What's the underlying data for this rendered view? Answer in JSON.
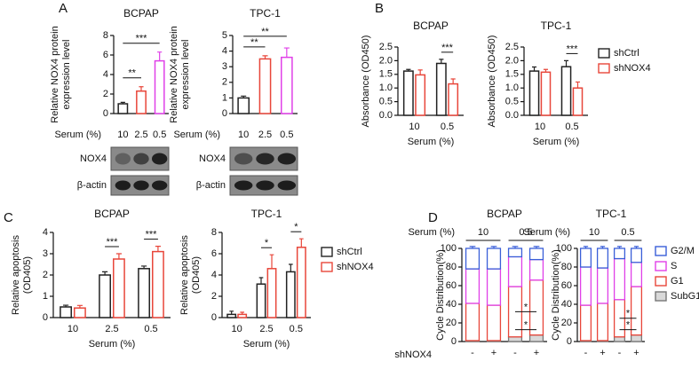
{
  "panel_labels": [
    "A",
    "B",
    "C",
    "D"
  ],
  "chart_data": [
    {
      "type": "bar",
      "title": "BCPAP",
      "y_label": [
        "Relative NOX4 protein",
        "expression level"
      ],
      "x_label": "Serum (%)",
      "categories": [
        "10",
        "2.5",
        "0.5"
      ],
      "values": [
        1.0,
        2.3,
        5.4
      ],
      "errors": [
        0.15,
        0.45,
        0.9
      ],
      "colors": [
        "#222222",
        "#e8463a",
        "#e040e8"
      ],
      "ylim": [
        0,
        8
      ],
      "yticks": [
        0,
        2,
        4,
        6,
        8
      ],
      "annotations": [
        {
          "text": "**",
          "between": [
            "10",
            "2.5"
          ]
        },
        {
          "text": "***",
          "between": [
            "10",
            "0.5"
          ]
        }
      ],
      "blot_labels": [
        "NOX4",
        "β-actin"
      ]
    },
    {
      "type": "bar",
      "title": "TPC-1",
      "y_label": [
        "Relative NOX4 protein",
        "expression level"
      ],
      "x_label": "Serum (%)",
      "categories": [
        "10",
        "2.5",
        "0.5"
      ],
      "values": [
        1.0,
        3.5,
        3.6
      ],
      "errors": [
        0.12,
        0.2,
        0.6
      ],
      "colors": [
        "#222222",
        "#e8463a",
        "#e040e8"
      ],
      "ylim": [
        0,
        5
      ],
      "yticks": [
        0,
        1,
        2,
        3,
        4,
        5
      ],
      "annotations": [
        {
          "text": "**",
          "between": [
            "10",
            "2.5"
          ]
        },
        {
          "text": "**",
          "between": [
            "10",
            "0.5"
          ]
        }
      ],
      "blot_labels": [
        "NOX4",
        "β-actin"
      ]
    },
    {
      "type": "grouped_bar",
      "title": "BCPAP",
      "y_label": [
        "Absorbance (OD450)"
      ],
      "x_label": "Serum (%)",
      "categories": [
        "10",
        "0.5"
      ],
      "series": [
        {
          "name": "shCtrl",
          "color": "#222222",
          "values": [
            1.62,
            1.9
          ],
          "errors": [
            0.06,
            0.15
          ]
        },
        {
          "name": "shNOX4",
          "color": "#e8463a",
          "values": [
            1.48,
            1.15
          ],
          "errors": [
            0.18,
            0.18
          ]
        }
      ],
      "ylim": [
        0,
        2.5
      ],
      "yticks": [
        {
          "value": 0,
          "label": "0.0"
        },
        {
          "value": 0.5,
          "label": "0.5"
        },
        {
          "value": 1,
          "label": "1.0"
        },
        {
          "value": 1.5,
          "label": "1.5"
        },
        {
          "value": 2,
          "label": "2.0"
        },
        {
          "value": 2.5,
          "label": "2.5"
        }
      ],
      "annotations": [
        {
          "text": "***",
          "category": "0.5"
        }
      ]
    },
    {
      "type": "grouped_bar",
      "title": "TPC-1",
      "y_label": [
        "Absorbance (OD450)"
      ],
      "x_label": "Serum (%)",
      "categories": [
        "10",
        "0.5"
      ],
      "series": [
        {
          "name": "shCtrl",
          "color": "#222222",
          "values": [
            1.62,
            1.78
          ],
          "errors": [
            0.15,
            0.22
          ]
        },
        {
          "name": "shNOX4",
          "color": "#e8463a",
          "values": [
            1.58,
            1.0
          ],
          "errors": [
            0.1,
            0.22
          ]
        }
      ],
      "ylim": [
        0,
        2.5
      ],
      "yticks": [
        {
          "value": 0,
          "label": "0.0"
        },
        {
          "value": 0.5,
          "label": "0.5"
        },
        {
          "value": 1,
          "label": "1.0"
        },
        {
          "value": 1.5,
          "label": "1.5"
        },
        {
          "value": 2,
          "label": "2.0"
        },
        {
          "value": 2.5,
          "label": "2.5"
        }
      ],
      "annotations": [
        {
          "text": "***",
          "category": "0.5"
        }
      ],
      "legend": "right"
    },
    {
      "type": "grouped_bar",
      "title": "BCPAP",
      "y_label": [
        "Relative apoptosis",
        "(OD405)"
      ],
      "x_label": "Serum (%)",
      "categories": [
        "10",
        "2.5",
        "0.5"
      ],
      "series": [
        {
          "name": "shCtrl",
          "color": "#222222",
          "values": [
            0.5,
            2.0,
            2.3
          ],
          "errors": [
            0.08,
            0.15,
            0.12
          ]
        },
        {
          "name": "shNOX4",
          "color": "#e8463a",
          "values": [
            0.45,
            2.75,
            3.1
          ],
          "errors": [
            0.12,
            0.25,
            0.25
          ]
        }
      ],
      "ylim": [
        0,
        4
      ],
      "yticks": [
        0,
        1,
        2,
        3,
        4
      ],
      "annotations": [
        {
          "text": "***",
          "category": "2.5"
        },
        {
          "text": "***",
          "category": "0.5"
        }
      ]
    },
    {
      "type": "grouped_bar",
      "title": "TPC-1",
      "y_label": [
        "Relative apoptosis",
        "(OD405)"
      ],
      "x_label": "Serum (%)",
      "categories": [
        "10",
        "2.5",
        "0.5"
      ],
      "series": [
        {
          "name": "shCtrl",
          "color": "#222222",
          "values": [
            0.3,
            3.15,
            4.3
          ],
          "errors": [
            0.3,
            0.6,
            0.7
          ]
        },
        {
          "name": "shNOX4",
          "color": "#e8463a",
          "values": [
            0.3,
            4.6,
            6.6
          ],
          "errors": [
            0.2,
            1.3,
            0.8
          ]
        }
      ],
      "ylim": [
        0,
        8
      ],
      "yticks": [
        0,
        2,
        4,
        6,
        8
      ],
      "annotations": [
        {
          "text": "*",
          "category": "2.5"
        },
        {
          "text": "*",
          "category": "0.5"
        }
      ],
      "legend": "right"
    },
    {
      "type": "stacked_bar",
      "title": "BCPAP",
      "y_label": [
        "Cycle Distribution(%)"
      ],
      "x_label": "shNOX4",
      "group_label": "Serum (%)",
      "groups": [
        "10",
        "0.5"
      ],
      "categories": [
        "-",
        "+",
        "-",
        "+"
      ],
      "series": [
        {
          "name": "SubG1",
          "color": "#777777",
          "fill": "#d9d9d9",
          "values": [
            1,
            1,
            5,
            7
          ],
          "errors": [
            0.5,
            0.5,
            1,
            1
          ]
        },
        {
          "name": "G1",
          "color": "#e8463a",
          "fill": "#ffffff",
          "values": [
            40,
            38,
            54,
            59
          ],
          "errors": [
            2,
            3,
            2,
            2
          ]
        },
        {
          "name": "S",
          "color": "#e040e8",
          "fill": "#ffffff",
          "values": [
            37,
            39,
            32,
            22
          ],
          "errors": [
            2,
            2,
            2,
            3
          ]
        },
        {
          "name": "G2/M",
          "color": "#3a5fd8",
          "fill": "#ffffff",
          "values": [
            22,
            22,
            9,
            12
          ],
          "errors": [
            2,
            2,
            2,
            2
          ]
        }
      ],
      "ylim": [
        0,
        100
      ],
      "yticks": [
        0,
        20,
        40,
        60,
        80,
        100
      ],
      "annotations": [
        {
          "text": "*",
          "group": "0.5",
          "series": "G1"
        },
        {
          "text": "*",
          "group": "0.5",
          "series": "SubG1"
        }
      ]
    },
    {
      "type": "stacked_bar",
      "title": "TPC-1",
      "y_label": [
        "Cycle Distribution(%)"
      ],
      "group_label": "Serum (%)",
      "groups": [
        "10",
        "0.5"
      ],
      "categories": [
        "-",
        "+",
        "-",
        "+"
      ],
      "series": [
        {
          "name": "SubG1",
          "color": "#777777",
          "fill": "#d9d9d9",
          "values": [
            1,
            1,
            5,
            7
          ],
          "errors": [
            0.5,
            0.5,
            1,
            1
          ]
        },
        {
          "name": "G1",
          "color": "#e8463a",
          "fill": "#ffffff",
          "values": [
            38,
            40,
            40,
            52
          ],
          "errors": [
            3,
            2,
            3,
            3
          ]
        },
        {
          "name": "S",
          "color": "#e040e8",
          "fill": "#ffffff",
          "values": [
            41,
            38,
            44,
            26
          ],
          "errors": [
            2,
            3,
            2,
            3
          ]
        },
        {
          "name": "G2/M",
          "color": "#3a5fd8",
          "fill": "#ffffff",
          "values": [
            20,
            21,
            11,
            15
          ],
          "errors": [
            2,
            2,
            2,
            2
          ]
        }
      ],
      "ylim": [
        0,
        100
      ],
      "yticks": [
        0,
        20,
        40,
        60,
        80,
        100
      ],
      "annotations": [
        {
          "text": "*",
          "group": "0.5",
          "series": "G1"
        },
        {
          "text": "*",
          "group": "0.5",
          "series": "SubG1"
        }
      ],
      "legend": "right"
    }
  ]
}
